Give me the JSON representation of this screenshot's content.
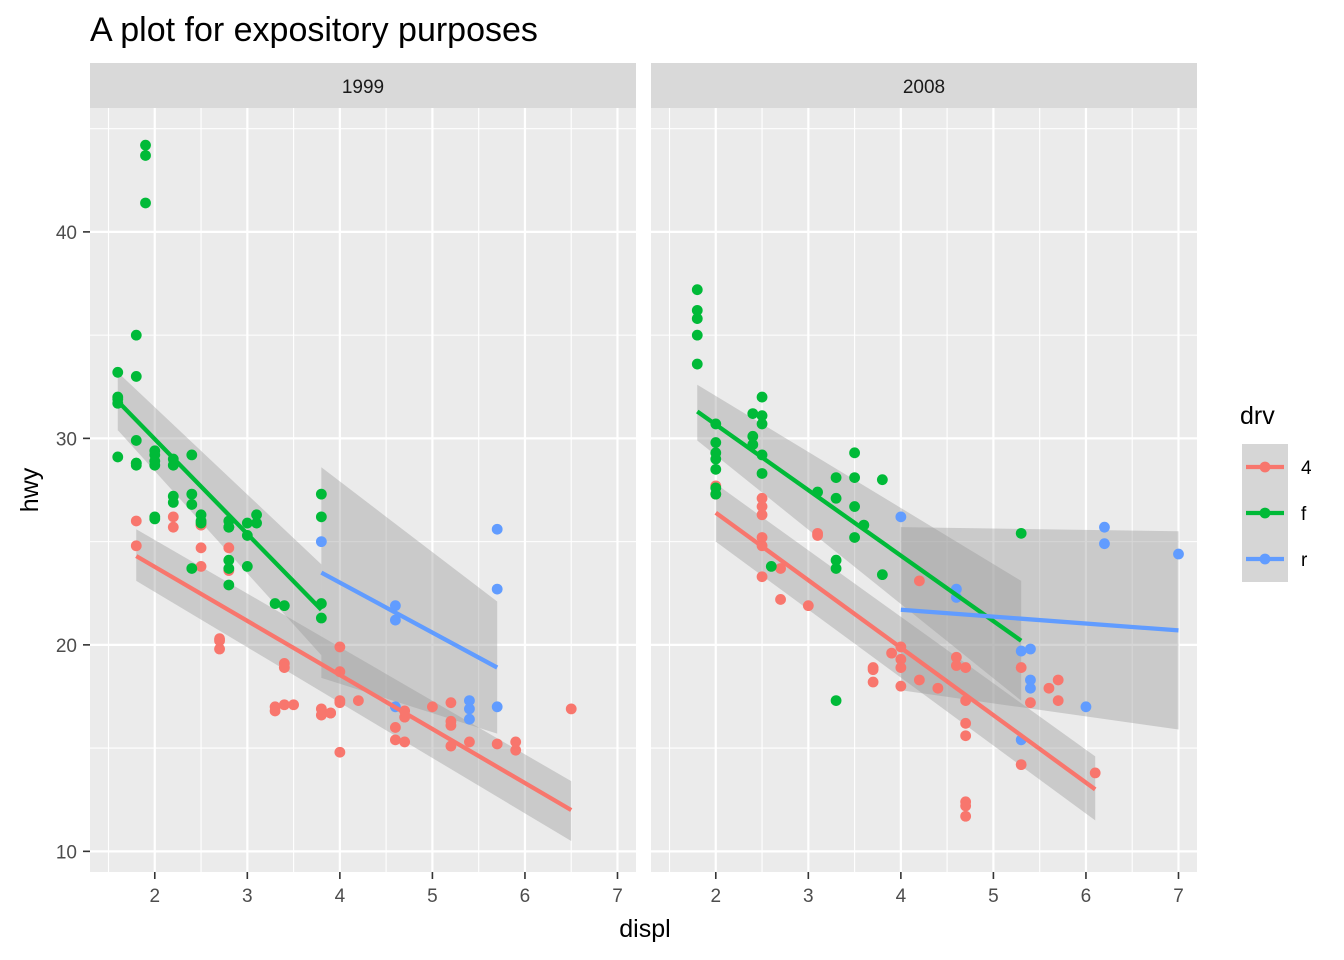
{
  "chart_data": {
    "type": "scatter",
    "title": "A plot for expository purposes",
    "xlabel": "displ",
    "ylabel": "hwy",
    "xlim": [
      1.3,
      7.2
    ],
    "ylim": [
      9,
      46
    ],
    "x_ticks": [
      2,
      3,
      4,
      5,
      6,
      7
    ],
    "y_ticks": [
      10,
      20,
      30,
      40
    ],
    "grid": true,
    "legend": {
      "title": "drv",
      "position": "right",
      "entries": [
        {
          "label": "4",
          "color": "#F8766D"
        },
        {
          "label": "f",
          "color": "#00BA38"
        },
        {
          "label": "r",
          "color": "#619CFF"
        }
      ]
    },
    "panels": [
      {
        "label": "1999",
        "points": {
          "4": [
            [
              1.8,
              26
            ],
            [
              1.8,
              24.8
            ],
            [
              2.2,
              26.2
            ],
            [
              2.2,
              25.7
            ],
            [
              2.5,
              25.8
            ],
            [
              2.5,
              24.7
            ],
            [
              2.5,
              25.8
            ],
            [
              2.5,
              23.8
            ],
            [
              2.7,
              20.2
            ],
            [
              2.7,
              20.3
            ],
            [
              2.7,
              19.8
            ],
            [
              2.8,
              23.6
            ],
            [
              2.8,
              24.7
            ],
            [
              3.3,
              16.8
            ],
            [
              3.3,
              17
            ],
            [
              3.4,
              19.1
            ],
            [
              3.4,
              18.9
            ],
            [
              3.4,
              17.1
            ],
            [
              3.5,
              17.1
            ],
            [
              3.8,
              16.6
            ],
            [
              3.8,
              16.9
            ],
            [
              3.9,
              16.7
            ],
            [
              3.9,
              16.7
            ],
            [
              4.0,
              19.9
            ],
            [
              4.0,
              18.7
            ],
            [
              4.0,
              17.3
            ],
            [
              4.0,
              17.2
            ],
            [
              4.0,
              14.8
            ],
            [
              4.2,
              17.3
            ],
            [
              4.6,
              16
            ],
            [
              4.6,
              15.4
            ],
            [
              4.7,
              15.3
            ],
            [
              4.7,
              16.5
            ],
            [
              4.7,
              16.8
            ],
            [
              5.0,
              17
            ],
            [
              5.2,
              17.2
            ],
            [
              5.2,
              16.1
            ],
            [
              5.2,
              16.3
            ],
            [
              5.2,
              15.1
            ],
            [
              5.4,
              15.3
            ],
            [
              5.7,
              15.2
            ],
            [
              5.9,
              15.3
            ],
            [
              5.9,
              14.9
            ],
            [
              6.5,
              16.9
            ]
          ],
          "f": [
            [
              1.6,
              31.9
            ],
            [
              1.6,
              31.7
            ],
            [
              1.6,
              29.1
            ],
            [
              1.6,
              33.2
            ],
            [
              1.6,
              32
            ],
            [
              1.8,
              28.7
            ],
            [
              1.8,
              28.8
            ],
            [
              1.8,
              29.9
            ],
            [
              1.8,
              35
            ],
            [
              1.8,
              33
            ],
            [
              1.8,
              28.8
            ],
            [
              1.9,
              44.2
            ],
            [
              1.9,
              41.4
            ],
            [
              1.9,
              43.7
            ],
            [
              2.0,
              29.2
            ],
            [
              2.0,
              29.4
            ],
            [
              2.0,
              28.7
            ],
            [
              2.0,
              26.2
            ],
            [
              2.0,
              26.1
            ],
            [
              2.0,
              28.9
            ],
            [
              2.2,
              28.7
            ],
            [
              2.2,
              27.2
            ],
            [
              2.2,
              29
            ],
            [
              2.2,
              26.9
            ],
            [
              2.4,
              29.2
            ],
            [
              2.4,
              27.3
            ],
            [
              2.4,
              26.8
            ],
            [
              2.4,
              23.7
            ],
            [
              2.5,
              26
            ],
            [
              2.5,
              26.3
            ],
            [
              2.5,
              25.9
            ],
            [
              2.8,
              25.7
            ],
            [
              2.8,
              26
            ],
            [
              2.8,
              25.7
            ],
            [
              2.8,
              24.1
            ],
            [
              2.8,
              22.9
            ],
            [
              2.8,
              23.7
            ],
            [
              3.0,
              25.3
            ],
            [
              3.0,
              25.9
            ],
            [
              3.0,
              23.8
            ],
            [
              3.1,
              26.3
            ],
            [
              3.1,
              25.9
            ],
            [
              3.3,
              22
            ],
            [
              3.4,
              21.9
            ],
            [
              3.8,
              26.2
            ],
            [
              3.8,
              21.3
            ],
            [
              3.8,
              22
            ],
            [
              3.8,
              27.3
            ]
          ],
          "r": [
            [
              3.8,
              25.0
            ],
            [
              4.6,
              21.2
            ],
            [
              4.6,
              21.9
            ],
            [
              4.6,
              17
            ],
            [
              5.4,
              17.3
            ],
            [
              5.4,
              16.4
            ],
            [
              5.4,
              16.9
            ],
            [
              5.7,
              22.7
            ],
            [
              5.7,
              25.6
            ],
            [
              5.7,
              17
            ]
          ]
        },
        "fits": [
          {
            "drv": "4",
            "x": [
              1.8,
              6.5
            ],
            "y": [
              24.3,
              12
            ],
            "band_lo": [
              23.1,
              10.5
            ],
            "band_hi": [
              25.6,
              13.4
            ]
          },
          {
            "drv": "f",
            "x": [
              1.6,
              3.8
            ],
            "y": [
              31.8,
              21.7
            ],
            "band_lo": [
              30.4,
              19.5
            ],
            "band_hi": [
              33.2,
              23.9
            ]
          },
          {
            "drv": "r",
            "x": [
              3.8,
              5.7
            ],
            "y": [
              23.5,
              18.9
            ],
            "band_lo": [
              18.4,
              15.7
            ],
            "band_hi": [
              28.6,
              22.1
            ]
          }
        ]
      },
      {
        "label": "2008",
        "points": {
          "4": [
            [
              2.0,
              27.3
            ],
            [
              2.0,
              27.7
            ],
            [
              2.5,
              27.1
            ],
            [
              2.5,
              26.7
            ],
            [
              2.5,
              26.3
            ],
            [
              2.5,
              24.8
            ],
            [
              2.5,
              25.2
            ],
            [
              2.5,
              23.3
            ],
            [
              2.7,
              23.7
            ],
            [
              2.7,
              22.2
            ],
            [
              3.0,
              21.9
            ],
            [
              3.1,
              25.4
            ],
            [
              3.1,
              25.3
            ],
            [
              3.7,
              18.9
            ],
            [
              3.7,
              18.8
            ],
            [
              3.7,
              18.2
            ],
            [
              3.9,
              19.6
            ],
            [
              4.0,
              19.9
            ],
            [
              4.0,
              19.3
            ],
            [
              4.0,
              18.9
            ],
            [
              4.0,
              18
            ],
            [
              4.2,
              23.1
            ],
            [
              4.2,
              18.3
            ],
            [
              4.4,
              17.9
            ],
            [
              4.6,
              19.4
            ],
            [
              4.6,
              19
            ],
            [
              4.7,
              18.9
            ],
            [
              4.7,
              17.3
            ],
            [
              4.7,
              16.2
            ],
            [
              4.7,
              15.6
            ],
            [
              4.7,
              12.4
            ],
            [
              4.7,
              12.2
            ],
            [
              4.7,
              11.7
            ],
            [
              5.3,
              18.9
            ],
            [
              5.3,
              14.2
            ],
            [
              5.4,
              17.2
            ],
            [
              5.6,
              17.9
            ],
            [
              5.7,
              18.3
            ],
            [
              5.7,
              17.3
            ],
            [
              6.1,
              13.8
            ]
          ],
          "f": [
            [
              1.8,
              37.2
            ],
            [
              1.8,
              36.2
            ],
            [
              1.8,
              35.8
            ],
            [
              1.8,
              35
            ],
            [
              1.8,
              33.6
            ],
            [
              2.0,
              30.7
            ],
            [
              2.0,
              29.8
            ],
            [
              2.0,
              29
            ],
            [
              2.0,
              29.3
            ],
            [
              2.0,
              28.5
            ],
            [
              2.0,
              27.6
            ],
            [
              2.0,
              27.3
            ],
            [
              2.4,
              31.2
            ],
            [
              2.4,
              30.1
            ],
            [
              2.4,
              29.7
            ],
            [
              2.5,
              32
            ],
            [
              2.5,
              31.1
            ],
            [
              2.5,
              30.7
            ],
            [
              2.5,
              29.2
            ],
            [
              2.5,
              28.3
            ],
            [
              2.6,
              23.8
            ],
            [
              3.1,
              27.4
            ],
            [
              3.3,
              28.1
            ],
            [
              3.3,
              27.1
            ],
            [
              3.3,
              24.1
            ],
            [
              3.3,
              23.7
            ],
            [
              3.3,
              17.3
            ],
            [
              3.5,
              29.3
            ],
            [
              3.5,
              28.1
            ],
            [
              3.5,
              26.7
            ],
            [
              3.5,
              25.2
            ],
            [
              3.6,
              25.8
            ],
            [
              3.8,
              23.4
            ],
            [
              3.8,
              28
            ],
            [
              5.3,
              25.4
            ]
          ],
          "r": [
            [
              4.0,
              26.2
            ],
            [
              4.6,
              22.3
            ],
            [
              4.6,
              22.7
            ],
            [
              5.3,
              19.7
            ],
            [
              5.3,
              15.4
            ],
            [
              5.4,
              18.3
            ],
            [
              5.4,
              17.9
            ],
            [
              5.4,
              19.8
            ],
            [
              6.0,
              17
            ],
            [
              6.2,
              25.7
            ],
            [
              6.2,
              24.9
            ],
            [
              7.0,
              24.4
            ]
          ]
        },
        "fits": [
          {
            "drv": "4",
            "x": [
              2.0,
              6.1
            ],
            "y": [
              26.4,
              13
            ],
            "band_lo": [
              25,
              11.5
            ],
            "band_hi": [
              27.8,
              14.6
            ]
          },
          {
            "drv": "f",
            "x": [
              1.8,
              5.3
            ],
            "y": [
              31.3,
              20.2
            ],
            "band_lo": [
              29.9,
              17.3
            ],
            "band_hi": [
              32.6,
              23.1
            ]
          },
          {
            "drv": "r",
            "x": [
              4.0,
              7.0
            ],
            "y": [
              21.7,
              20.7
            ],
            "band_lo": [
              17.8,
              15.9
            ],
            "band_hi": [
              25.7,
              25.5
            ]
          }
        ]
      }
    ]
  }
}
